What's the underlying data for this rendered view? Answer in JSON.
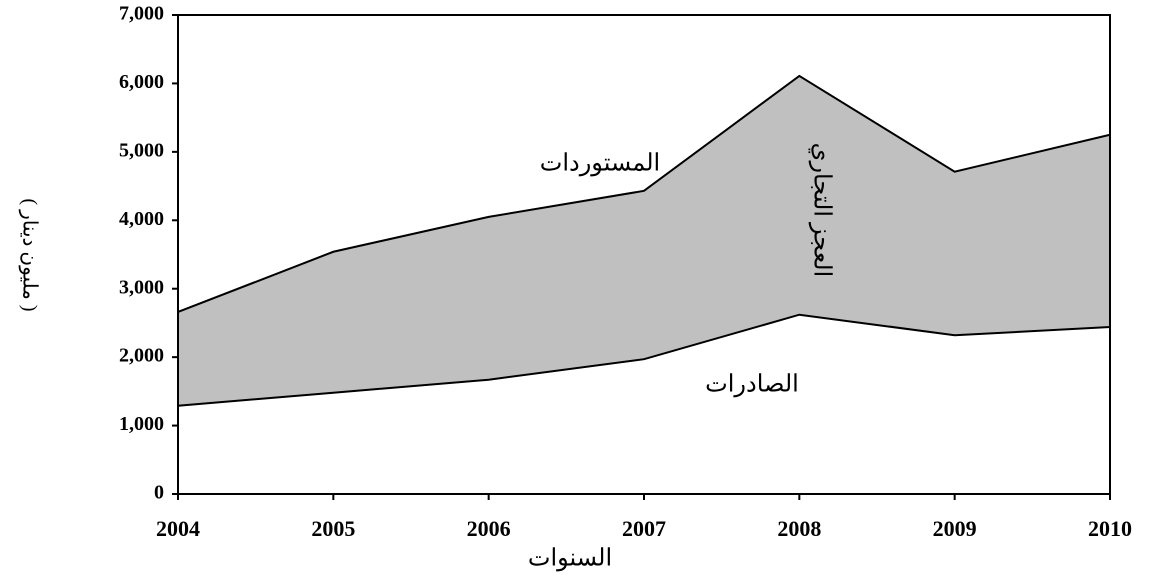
{
  "chart_data": {
    "type": "area_between",
    "categories": [
      "2004",
      "2005",
      "2006",
      "2007",
      "2008",
      "2009",
      "2010"
    ],
    "series": [
      {
        "name": "المستوردات",
        "color": "#000000",
        "values": [
          2660,
          3540,
          4050,
          4430,
          6110,
          4710,
          5250
        ]
      },
      {
        "name": "الصادرات",
        "color": "#000000",
        "values": [
          1290,
          1480,
          1670,
          1970,
          2620,
          2320,
          2440
        ]
      }
    ],
    "fill_color": "#c0c0c0",
    "annotation": "العجز التجاري",
    "x_label": "السنوات",
    "y_label": "( مليون دينار )",
    "ylim": [
      0,
      7000
    ],
    "yticks": [
      0,
      {
        "value": 1000,
        "label": "1,000"
      },
      {
        "value": 2000,
        "label": "2,000"
      },
      {
        "value": 3000,
        "label": "3,000"
      },
      {
        "value": 4000,
        "label": "4,000"
      },
      {
        "value": 5000,
        "label": "5,000"
      },
      {
        "value": 6000,
        "label": "6,000"
      },
      {
        "value": 7000,
        "label": "7,000"
      }
    ]
  }
}
